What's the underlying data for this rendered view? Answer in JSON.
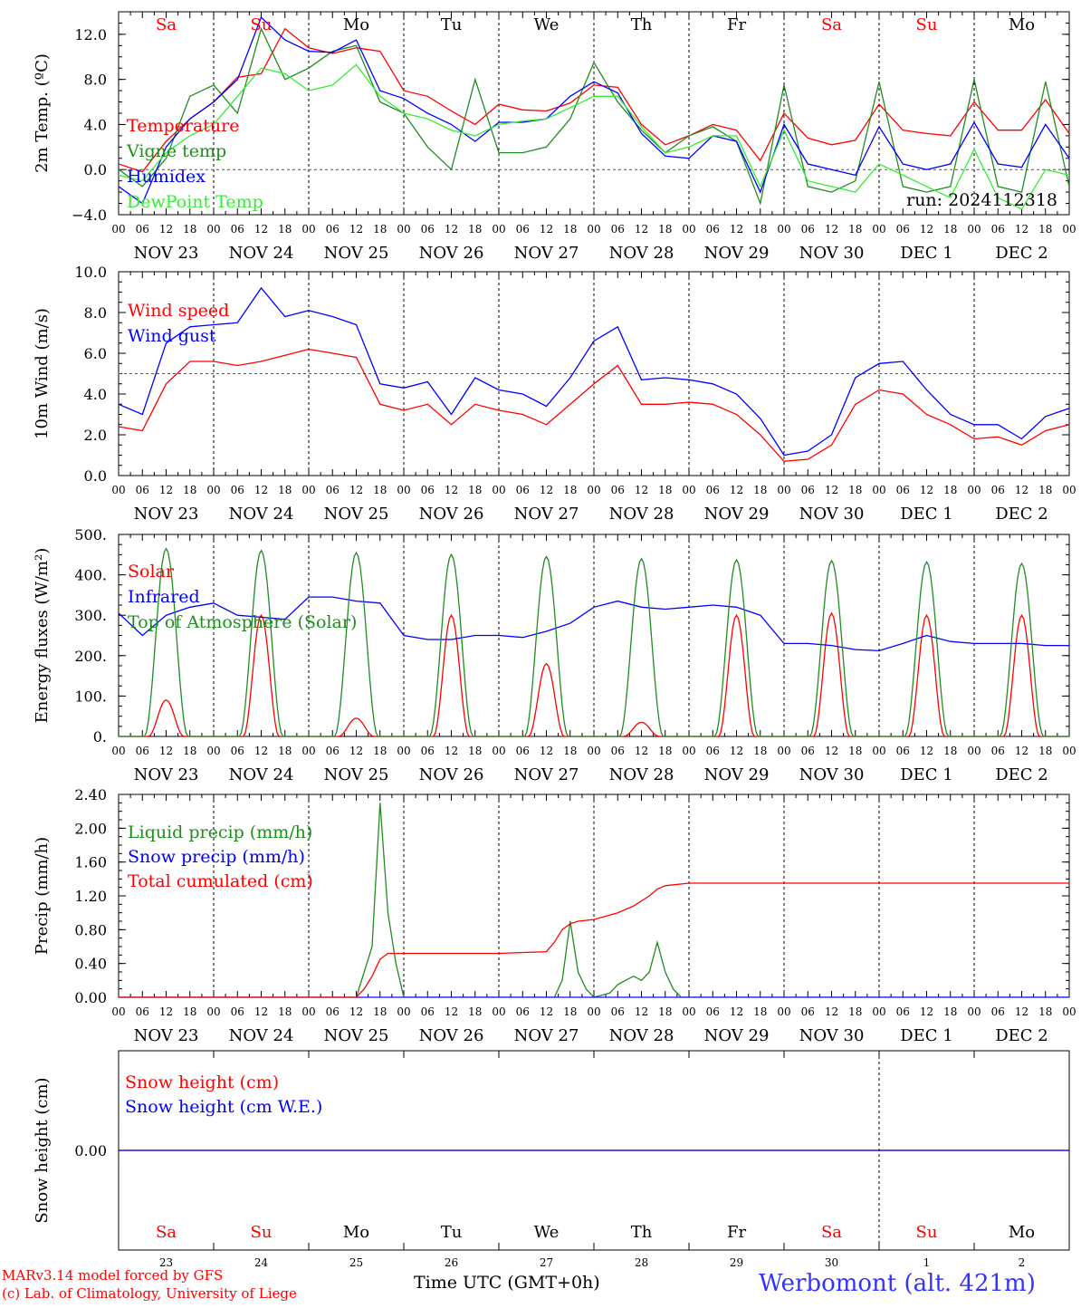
{
  "chart_data": [
    {
      "type": "line",
      "ylabel": "2m Temp. (ºC)",
      "ylim": [
        -4,
        14
      ],
      "yticks": [
        "−4.0",
        "0.0",
        "4.0",
        "8.0",
        "12.0"
      ],
      "ytick_values": [
        -4,
        0,
        4,
        8,
        12
      ],
      "ref_line": 0,
      "run_label": "run: 2024112318",
      "x": [
        0,
        6,
        12,
        18,
        24,
        30,
        36,
        42,
        48,
        54,
        60,
        66,
        72,
        78,
        84,
        90,
        96,
        102,
        108,
        114,
        120,
        126,
        132,
        138,
        144,
        150,
        156,
        162,
        168,
        174,
        180,
        186,
        192,
        198,
        204,
        210,
        216,
        222,
        228,
        234,
        240
      ],
      "series": [
        {
          "name": "Temperature",
          "color": "#ff0000",
          "values": [
            0.5,
            -0.2,
            2.5,
            4.5,
            6.0,
            8.2,
            8.5,
            12.5,
            10.8,
            10.3,
            10.8,
            10.5,
            7.0,
            6.5,
            5.2,
            4.0,
            5.8,
            5.3,
            5.2,
            5.9,
            7.5,
            7.3,
            4.0,
            2.2,
            3.0,
            4.0,
            3.5,
            0.8,
            5.0,
            2.8,
            2.2,
            2.6,
            5.8,
            3.5,
            3.2,
            3.0,
            6.0,
            3.5,
            3.5,
            6.2,
            3.2
          ]
        },
        {
          "name": "Vigne temp",
          "color": "#228b22",
          "values": [
            0.0,
            -1.5,
            1.0,
            6.5,
            7.5,
            5.0,
            12.5,
            8.0,
            9.0,
            10.5,
            11.0,
            6.0,
            5.0,
            2.0,
            0.0,
            8.0,
            1.5,
            1.5,
            2.0,
            4.5,
            9.5,
            6.0,
            3.5,
            1.5,
            3.0,
            3.8,
            2.5,
            -3.0,
            7.5,
            -1.5,
            -2.0,
            -1.0,
            7.8,
            -1.5,
            -2.0,
            -1.5,
            8.0,
            -1.5,
            -2.0,
            7.8,
            -1.5
          ]
        },
        {
          "name": "Humidex",
          "color": "#0000ff",
          "values": [
            -1.5,
            -3.0,
            2.0,
            4.5,
            6.0,
            8.0,
            13.5,
            11.5,
            10.5,
            10.4,
            11.5,
            7.0,
            6.3,
            5.0,
            4.0,
            2.5,
            4.2,
            4.2,
            4.5,
            6.5,
            7.8,
            6.8,
            3.2,
            1.2,
            1.0,
            3.0,
            2.5,
            -2.0,
            4.0,
            0.5,
            0.0,
            -0.5,
            3.8,
            0.5,
            0.0,
            0.5,
            4.2,
            0.5,
            0.2,
            4.0,
            1.0
          ]
        },
        {
          "name": "DewPoint Temp",
          "color": "#33ee33",
          "values": [
            -0.5,
            -1.0,
            1.5,
            3.0,
            4.0,
            6.5,
            9.0,
            8.5,
            7.0,
            7.5,
            9.3,
            6.5,
            5.0,
            4.5,
            3.5,
            3.0,
            4.0,
            4.3,
            4.5,
            5.5,
            6.5,
            6.5,
            3.8,
            1.5,
            2.0,
            3.0,
            3.0,
            -1.5,
            3.5,
            -1.0,
            -1.5,
            -2.0,
            0.5,
            -0.5,
            -1.5,
            -2.5,
            1.8,
            -2.5,
            -3.5,
            0.0,
            -0.5
          ]
        }
      ]
    },
    {
      "type": "line",
      "ylabel": "10m Wind (m/s)",
      "ylim": [
        0,
        10
      ],
      "yticks": [
        "0.0",
        "2.0",
        "4.0",
        "6.0",
        "8.0",
        "10.0"
      ],
      "ytick_values": [
        0,
        2,
        4,
        6,
        8,
        10
      ],
      "ref_line": 5,
      "x": [
        0,
        6,
        12,
        18,
        24,
        30,
        36,
        42,
        48,
        54,
        60,
        66,
        72,
        78,
        84,
        90,
        96,
        102,
        108,
        114,
        120,
        126,
        132,
        138,
        144,
        150,
        156,
        162,
        168,
        174,
        180,
        186,
        192,
        198,
        204,
        210,
        216,
        222,
        228,
        234,
        240
      ],
      "series": [
        {
          "name": "Wind speed",
          "color": "#ff0000",
          "values": [
            2.4,
            2.2,
            4.5,
            5.6,
            5.6,
            5.4,
            5.6,
            5.9,
            6.2,
            6.0,
            5.8,
            3.5,
            3.2,
            3.5,
            2.5,
            3.5,
            3.2,
            3.0,
            2.5,
            3.5,
            4.5,
            5.4,
            3.5,
            3.5,
            3.6,
            3.5,
            3.0,
            2.0,
            0.7,
            0.8,
            1.5,
            3.5,
            4.2,
            4.0,
            3.0,
            2.5,
            1.8,
            1.9,
            1.5,
            2.2,
            2.5
          ]
        },
        {
          "name": "Wind gust",
          "color": "#0000ff",
          "values": [
            3.5,
            3.0,
            6.5,
            7.3,
            7.4,
            7.5,
            9.2,
            7.8,
            8.1,
            7.8,
            7.4,
            4.5,
            4.3,
            4.6,
            3.0,
            4.8,
            4.2,
            4.0,
            3.4,
            4.8,
            6.6,
            7.3,
            4.7,
            4.8,
            4.7,
            4.5,
            4.0,
            2.8,
            1.0,
            1.2,
            2.0,
            4.8,
            5.5,
            5.6,
            4.2,
            3.0,
            2.5,
            2.5,
            1.8,
            2.9,
            3.3
          ]
        }
      ]
    },
    {
      "type": "line",
      "ylabel": "Energy fluxes (W/m²)",
      "ylim": [
        0,
        500
      ],
      "yticks": [
        "0.",
        "100.",
        "200.",
        "300.",
        "400.",
        "500."
      ],
      "ytick_values": [
        0,
        100,
        200,
        300,
        400,
        500
      ],
      "series": [
        {
          "name": "Solar",
          "color": "#ff0000",
          "peaks": [
            90,
            300,
            45,
            300,
            180,
            35,
            300,
            305,
            300,
            300
          ]
        },
        {
          "name": "Infrared",
          "color": "#0000ff",
          "x": [
            0,
            6,
            12,
            18,
            24,
            30,
            36,
            42,
            48,
            54,
            60,
            66,
            72,
            78,
            84,
            90,
            96,
            102,
            108,
            114,
            120,
            126,
            132,
            138,
            144,
            150,
            156,
            162,
            168,
            174,
            180,
            186,
            192,
            198,
            204,
            210,
            216,
            222,
            228,
            234,
            240
          ],
          "values": [
            305,
            250,
            300,
            320,
            330,
            300,
            295,
            290,
            345,
            345,
            335,
            330,
            250,
            240,
            240,
            250,
            250,
            245,
            260,
            280,
            320,
            335,
            320,
            315,
            320,
            325,
            320,
            300,
            230,
            230,
            225,
            215,
            212,
            230,
            250,
            235,
            230,
            230,
            230,
            225,
            225
          ]
        },
        {
          "name": "Top of Atmosphere (Solar)",
          "color": "#228b22",
          "peaks": [
            465,
            460,
            455,
            450,
            445,
            440,
            437,
            435,
            432,
            428
          ]
        }
      ]
    },
    {
      "type": "line",
      "ylabel": "Precip (mm/h)",
      "ylim": [
        0,
        2.4
      ],
      "yticks": [
        "0.00",
        "0.40",
        "0.80",
        "1.20",
        "1.60",
        "2.00",
        "2.40"
      ],
      "ytick_values": [
        0,
        0.4,
        0.8,
        1.2,
        1.6,
        2.0,
        2.4
      ],
      "series": [
        {
          "name": "Liquid precip (mm/h)",
          "color": "#228b22",
          "x": [
            0,
            60,
            62,
            64,
            66,
            68,
            70,
            72,
            96,
            110,
            112,
            114,
            116,
            118,
            120,
            124,
            126,
            128,
            130,
            132,
            134,
            136,
            138,
            140,
            142,
            144,
            146,
            150,
            240
          ],
          "values": [
            0,
            0,
            0.3,
            0.6,
            2.3,
            1.0,
            0.4,
            0,
            0,
            0,
            0.2,
            0.9,
            0.3,
            0.1,
            0,
            0.05,
            0.15,
            0.2,
            0.25,
            0.2,
            0.3,
            0.65,
            0.3,
            0.1,
            0,
            0,
            0,
            0,
            0
          ]
        },
        {
          "name": "Snow precip (mm/h)",
          "color": "#0000ff",
          "x": [
            0,
            240
          ],
          "values": [
            0,
            0
          ]
        },
        {
          "name": "Total cumulated (cm)",
          "color": "#ff0000",
          "x": [
            0,
            60,
            62,
            64,
            66,
            68,
            72,
            96,
            108,
            110,
            112,
            114,
            116,
            120,
            126,
            130,
            134,
            136,
            138,
            144,
            240
          ],
          "values": [
            0,
            0,
            0.1,
            0.25,
            0.45,
            0.52,
            0.52,
            0.52,
            0.54,
            0.65,
            0.8,
            0.87,
            0.9,
            0.92,
            1.0,
            1.08,
            1.2,
            1.28,
            1.32,
            1.35,
            1.35
          ]
        }
      ]
    },
    {
      "type": "line",
      "ylabel": "Snow height (cm)",
      "ylim": [
        -1,
        1
      ],
      "yticks": [
        "0.00"
      ],
      "ytick_values": [
        0
      ],
      "series": [
        {
          "name": "Snow height (cm)",
          "color": "#ff0000",
          "x": [
            0,
            240
          ],
          "values": [
            0,
            0
          ]
        },
        {
          "name": "Snow height (cm W.E.)",
          "color": "#0000ff",
          "x": [
            0,
            240
          ],
          "values": [
            0,
            0
          ]
        }
      ]
    }
  ],
  "axis": {
    "days": [
      {
        "dow": "Sa",
        "date": "NOV 23",
        "num": "23",
        "weekend": true
      },
      {
        "dow": "Su",
        "date": "NOV 24",
        "num": "24",
        "weekend": true
      },
      {
        "dow": "Mo",
        "date": "NOV 25",
        "num": "25",
        "weekend": false
      },
      {
        "dow": "Tu",
        "date": "NOV 26",
        "num": "26",
        "weekend": false
      },
      {
        "dow": "We",
        "date": "NOV 27",
        "num": "27",
        "weekend": false
      },
      {
        "dow": "Th",
        "date": "NOV 28",
        "num": "28",
        "weekend": false
      },
      {
        "dow": "Fr",
        "date": "NOV 29",
        "num": "29",
        "weekend": false
      },
      {
        "dow": "Sa",
        "date": "NOV 30",
        "num": "30",
        "weekend": true
      },
      {
        "dow": "Su",
        "date": "DEC  1",
        "num": "1",
        "weekend": true
      },
      {
        "dow": "Mo",
        "date": "DEC  2",
        "num": "2",
        "weekend": false
      }
    ],
    "hour_labels": [
      "00",
      "06",
      "12",
      "18"
    ],
    "end_label": "00",
    "xlabel": "Time UTC (GMT+0h)"
  },
  "footer": {
    "credit_line1": "MARv3.14 model forced by GFS",
    "credit_line2": "(c) Lab. of Climatology, University of Liege",
    "station": "Werbomont (alt. 421m)"
  },
  "colors": {
    "weekend_day": "#ff0000",
    "weekday": "#000000",
    "station": "#3333ff"
  }
}
